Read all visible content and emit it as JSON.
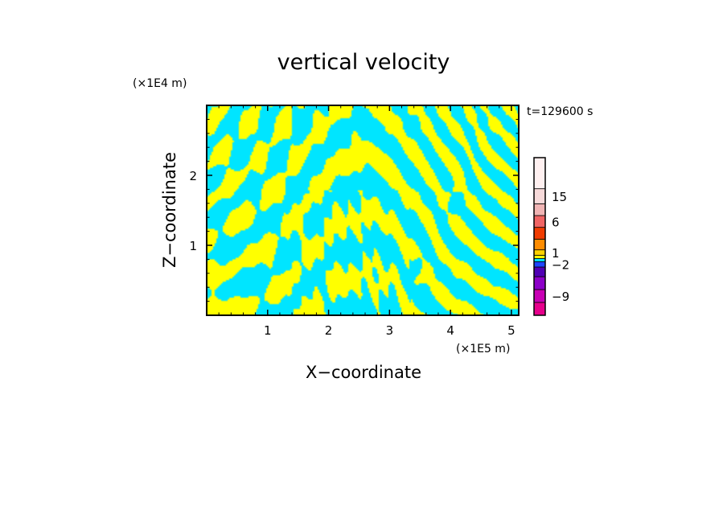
{
  "chart_data": {
    "type": "heatmap",
    "title": "vertical velocity",
    "xlabel": "X−coordinate",
    "ylabel": "Z−coordinate",
    "x_unit": "(×1E5 m)",
    "y_unit": "(×1E4 m)",
    "time_label": "t=129600 s",
    "xlim": [
      0,
      5.12
    ],
    "ylim": [
      0,
      3.0
    ],
    "xticks": [
      1,
      2,
      3,
      4,
      5
    ],
    "yticks": [
      1,
      2
    ],
    "xtick_labels": [
      "1",
      "2",
      "3",
      "4",
      "5"
    ],
    "ytick_labels": [
      "1",
      "2"
    ],
    "field_colors": {
      "positive": "#ffff00",
      "negative": "#00e5ff"
    },
    "colorbar": {
      "levels": [
        -12,
        -9,
        -6,
        -4,
        -2,
        -1,
        0,
        1,
        2,
        4,
        6,
        10,
        15,
        20,
        25
      ],
      "colors": [
        "#e6008c",
        "#c800b4",
        "#8c00c8",
        "#5000b4",
        "#1e46ff",
        "#00e5ff",
        "#ffff00",
        "#ffd200",
        "#ff8c00",
        "#f03c00",
        "#f06464",
        "#f0b4b4",
        "#f7dada",
        "#fff0f0"
      ],
      "tick_labels": [
        {
          "value": -9,
          "label": "−9"
        },
        {
          "value": -2,
          "label": "−2"
        },
        {
          "value": 1,
          "label": "1"
        },
        {
          "value": 6,
          "label": "6"
        },
        {
          "value": 15,
          "label": "15"
        }
      ]
    }
  }
}
